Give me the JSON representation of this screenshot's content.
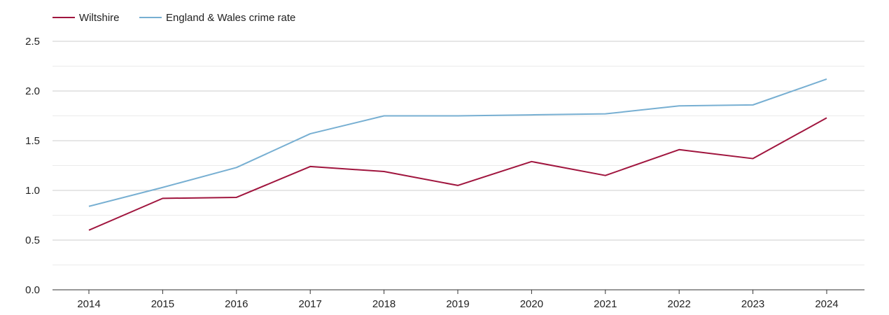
{
  "chart_data": {
    "type": "line",
    "title": "",
    "xlabel": "",
    "ylabel": "",
    "categories": [
      "2014",
      "2015",
      "2016",
      "2017",
      "2018",
      "2019",
      "2020",
      "2021",
      "2022",
      "2023",
      "2024"
    ],
    "ylim": [
      0,
      2.5
    ],
    "yticks": [
      "0.0",
      "0.5",
      "1.0",
      "1.5",
      "2.0",
      "2.5"
    ],
    "ytick_values": [
      0,
      0.5,
      1.0,
      1.5,
      2.0,
      2.5
    ],
    "grid": true,
    "legend_position": "top-left",
    "series": [
      {
        "name": "Wiltshire",
        "color": "#a0153e",
        "values": [
          0.6,
          0.92,
          0.93,
          1.24,
          1.19,
          1.05,
          1.29,
          1.15,
          1.41,
          1.32,
          1.73
        ]
      },
      {
        "name": "England & Wales crime rate",
        "color": "#77afd2",
        "values": [
          0.84,
          1.03,
          1.23,
          1.57,
          1.75,
          1.75,
          1.76,
          1.77,
          1.85,
          1.86,
          2.12
        ]
      }
    ]
  },
  "colors": {
    "grid_major": "#cccccc",
    "grid_minor": "#ebebeb",
    "axis": "#333333"
  }
}
